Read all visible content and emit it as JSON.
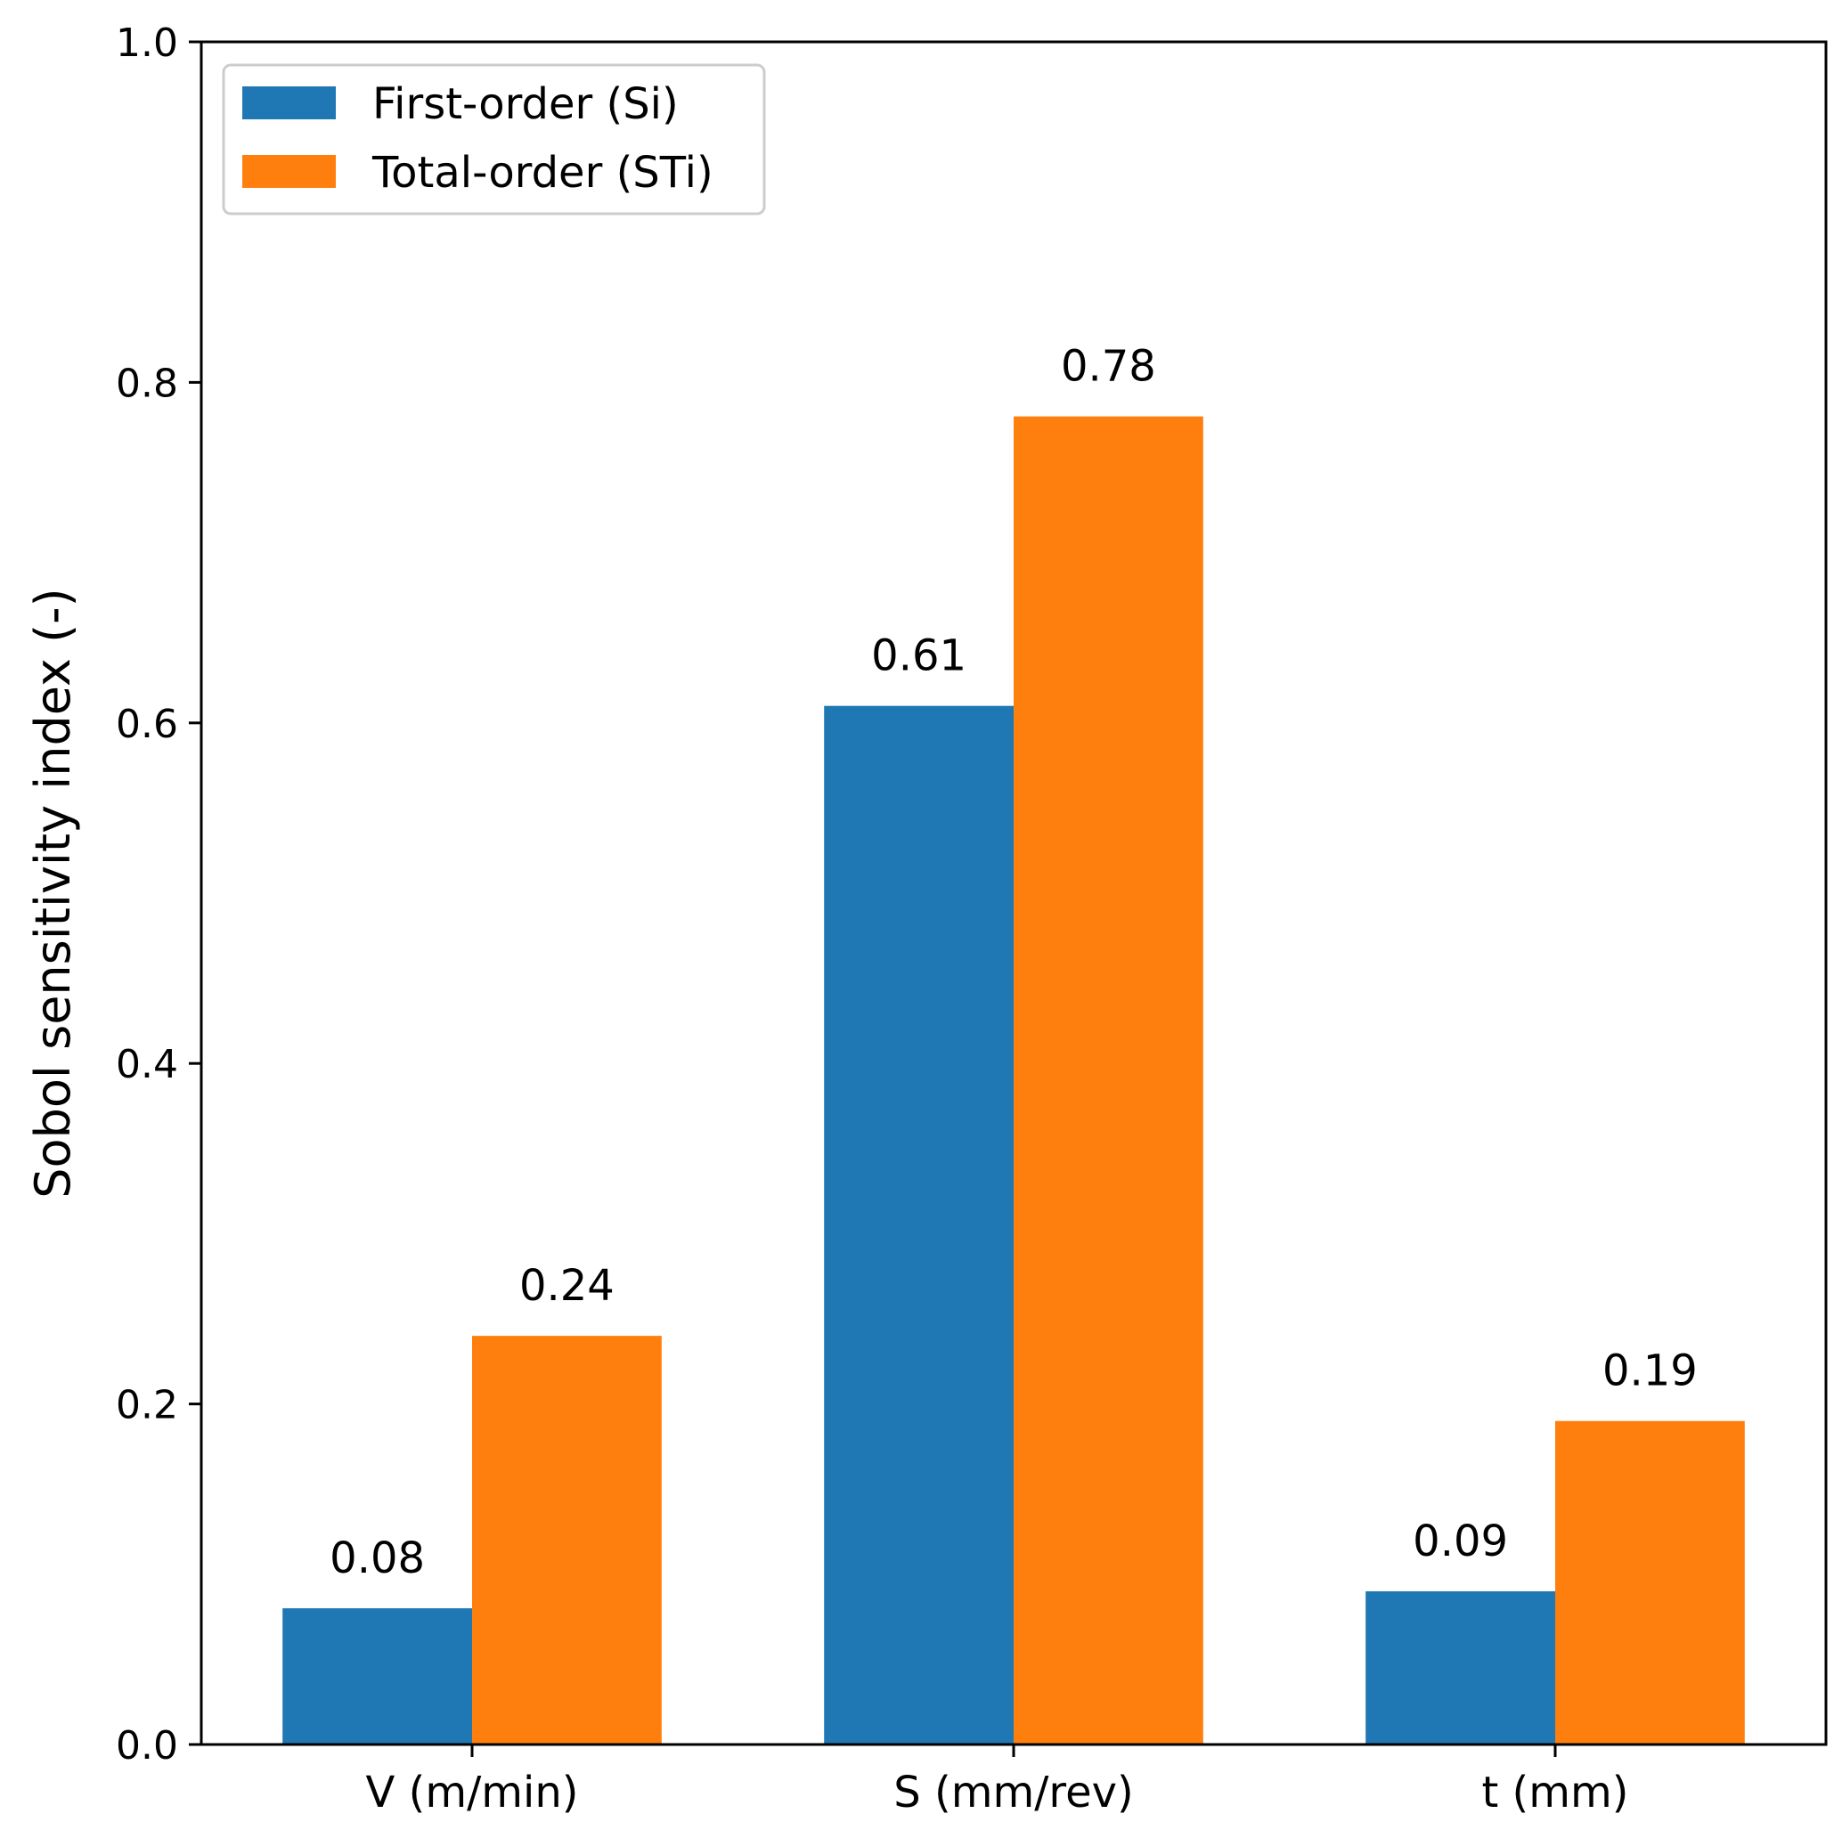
{
  "chart_data": {
    "type": "bar",
    "title": "",
    "xlabel": "",
    "ylabel": "Sobol sensitivity index (-)",
    "categories": [
      "V (m/min)",
      "S (mm/rev)",
      "t (mm)"
    ],
    "series": [
      {
        "name": "First-order (Si)",
        "color": "#1f77b4",
        "values": [
          0.08,
          0.61,
          0.09
        ],
        "labels": [
          "0.08",
          "0.61",
          "0.09"
        ]
      },
      {
        "name": "Total-order (STi)",
        "color": "#ff7f0e",
        "values": [
          0.24,
          0.78,
          0.19
        ],
        "labels": [
          "0.24",
          "0.78",
          "0.19"
        ]
      }
    ],
    "ylim": [
      0.0,
      1.0
    ],
    "yticks": [
      0.0,
      0.2,
      0.4,
      0.6,
      0.8,
      1.0
    ],
    "ytick_labels": [
      "0.0",
      "0.2",
      "0.4",
      "0.6",
      "0.8",
      "1.0"
    ],
    "grid": false,
    "legend_position": "top-left"
  }
}
